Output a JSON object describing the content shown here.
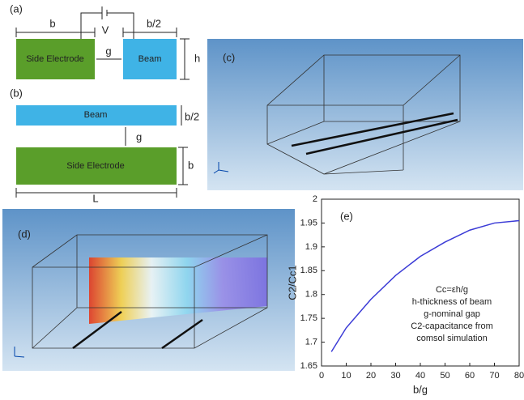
{
  "panel_a": {
    "label": "(a)",
    "b": "b",
    "voltage": "V",
    "half_b": "b/2",
    "gap": "g",
    "height": "h",
    "electrode": "Side Electrode",
    "beam": "Beam"
  },
  "panel_b": {
    "label": "(b)",
    "beam": "Beam",
    "half_b": "b/2",
    "gap": "g",
    "electrode": "Side Electrode",
    "b": "b",
    "length": "L"
  },
  "panel_c": {
    "label": "(c)"
  },
  "panel_d": {
    "label": "(d)"
  },
  "chart_data": {
    "type": "line",
    "label": "(e)",
    "x_label": "b/g",
    "y_label": "C2/Cc1",
    "annotations": [
      "Cc=εh/g",
      "h-thickness of beam",
      "g-nominal gap",
      "C2-capacitance from",
      "comsol simulation"
    ],
    "x": [
      4,
      10,
      20,
      30,
      40,
      50,
      60,
      70,
      80
    ],
    "series": [
      {
        "name": "C2/Cc1",
        "color": "#3b3bd6",
        "values": [
          1.68,
          1.73,
          1.79,
          1.84,
          1.88,
          1.91,
          1.935,
          1.95,
          1.955
        ]
      }
    ],
    "xlim": [
      0,
      80
    ],
    "xticks": [
      0,
      10,
      20,
      30,
      40,
      50,
      60,
      70,
      80
    ],
    "ylim": [
      1.65,
      2
    ],
    "yticks": [
      1.65,
      1.7,
      1.75,
      1.8,
      1.85,
      1.9,
      1.95,
      2
    ]
  }
}
